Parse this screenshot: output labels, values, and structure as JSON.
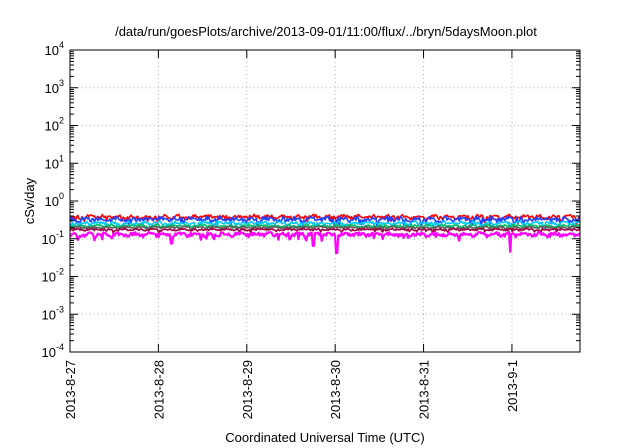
{
  "chart_data": {
    "type": "line",
    "title": "/data/run/goesPlots/archive/2013-09-01/11:00/flux/../bryn/5daysMoon.plot",
    "xlabel": "Coordinated Universal Time (UTC)",
    "ylabel": "cSv/day",
    "yscale": "log",
    "ylim": [
      0.0001,
      10000
    ],
    "xlim": [
      0,
      5.77
    ],
    "x_ticks": [
      {
        "value": 0,
        "label": "2013-8-27"
      },
      {
        "value": 1,
        "label": "2013-8-28"
      },
      {
        "value": 2,
        "label": "2013-8-29"
      },
      {
        "value": 3,
        "label": "2013-8-30"
      },
      {
        "value": 4,
        "label": "2013-8-31"
      },
      {
        "value": 5,
        "label": "2013-9-1"
      }
    ],
    "y_ticks": [
      {
        "value": 0.0001,
        "base": "10",
        "exp": "-4"
      },
      {
        "value": 0.001,
        "base": "10",
        "exp": "-3"
      },
      {
        "value": 0.01,
        "base": "10",
        "exp": "-2"
      },
      {
        "value": 0.1,
        "base": "10",
        "exp": "-1"
      },
      {
        "value": 1,
        "base": "10",
        "exp": "0"
      },
      {
        "value": 10,
        "base": "10",
        "exp": "1"
      },
      {
        "value": 100,
        "base": "10",
        "exp": "2"
      },
      {
        "value": 1000,
        "base": "10",
        "exp": "3"
      },
      {
        "value": 10000,
        "base": "10",
        "exp": "4"
      }
    ],
    "grid": true,
    "legend": "none",
    "series": [
      {
        "color": "#ff0000",
        "base": 0.38,
        "amp": 0.1,
        "dips": []
      },
      {
        "color": "#2040ff",
        "base": 0.33,
        "amp": 0.12,
        "dips": []
      },
      {
        "color": "#00c8ff",
        "base": 0.26,
        "amp": 0.08,
        "dips": []
      },
      {
        "color": "#00c060",
        "base": 0.22,
        "amp": 0.06,
        "dips": []
      },
      {
        "color": "#606060",
        "base": 0.2,
        "amp": 0.05,
        "dips": []
      },
      {
        "color": "#a00040",
        "base": 0.175,
        "amp": 0.05,
        "dips": []
      },
      {
        "color": "#ff00ff",
        "base": 0.13,
        "amp": 0.1,
        "dips": [
          [
            1.15,
            0.075
          ],
          [
            2.75,
            0.065
          ],
          [
            3.02,
            0.042
          ],
          [
            4.98,
            0.045
          ]
        ]
      }
    ]
  }
}
